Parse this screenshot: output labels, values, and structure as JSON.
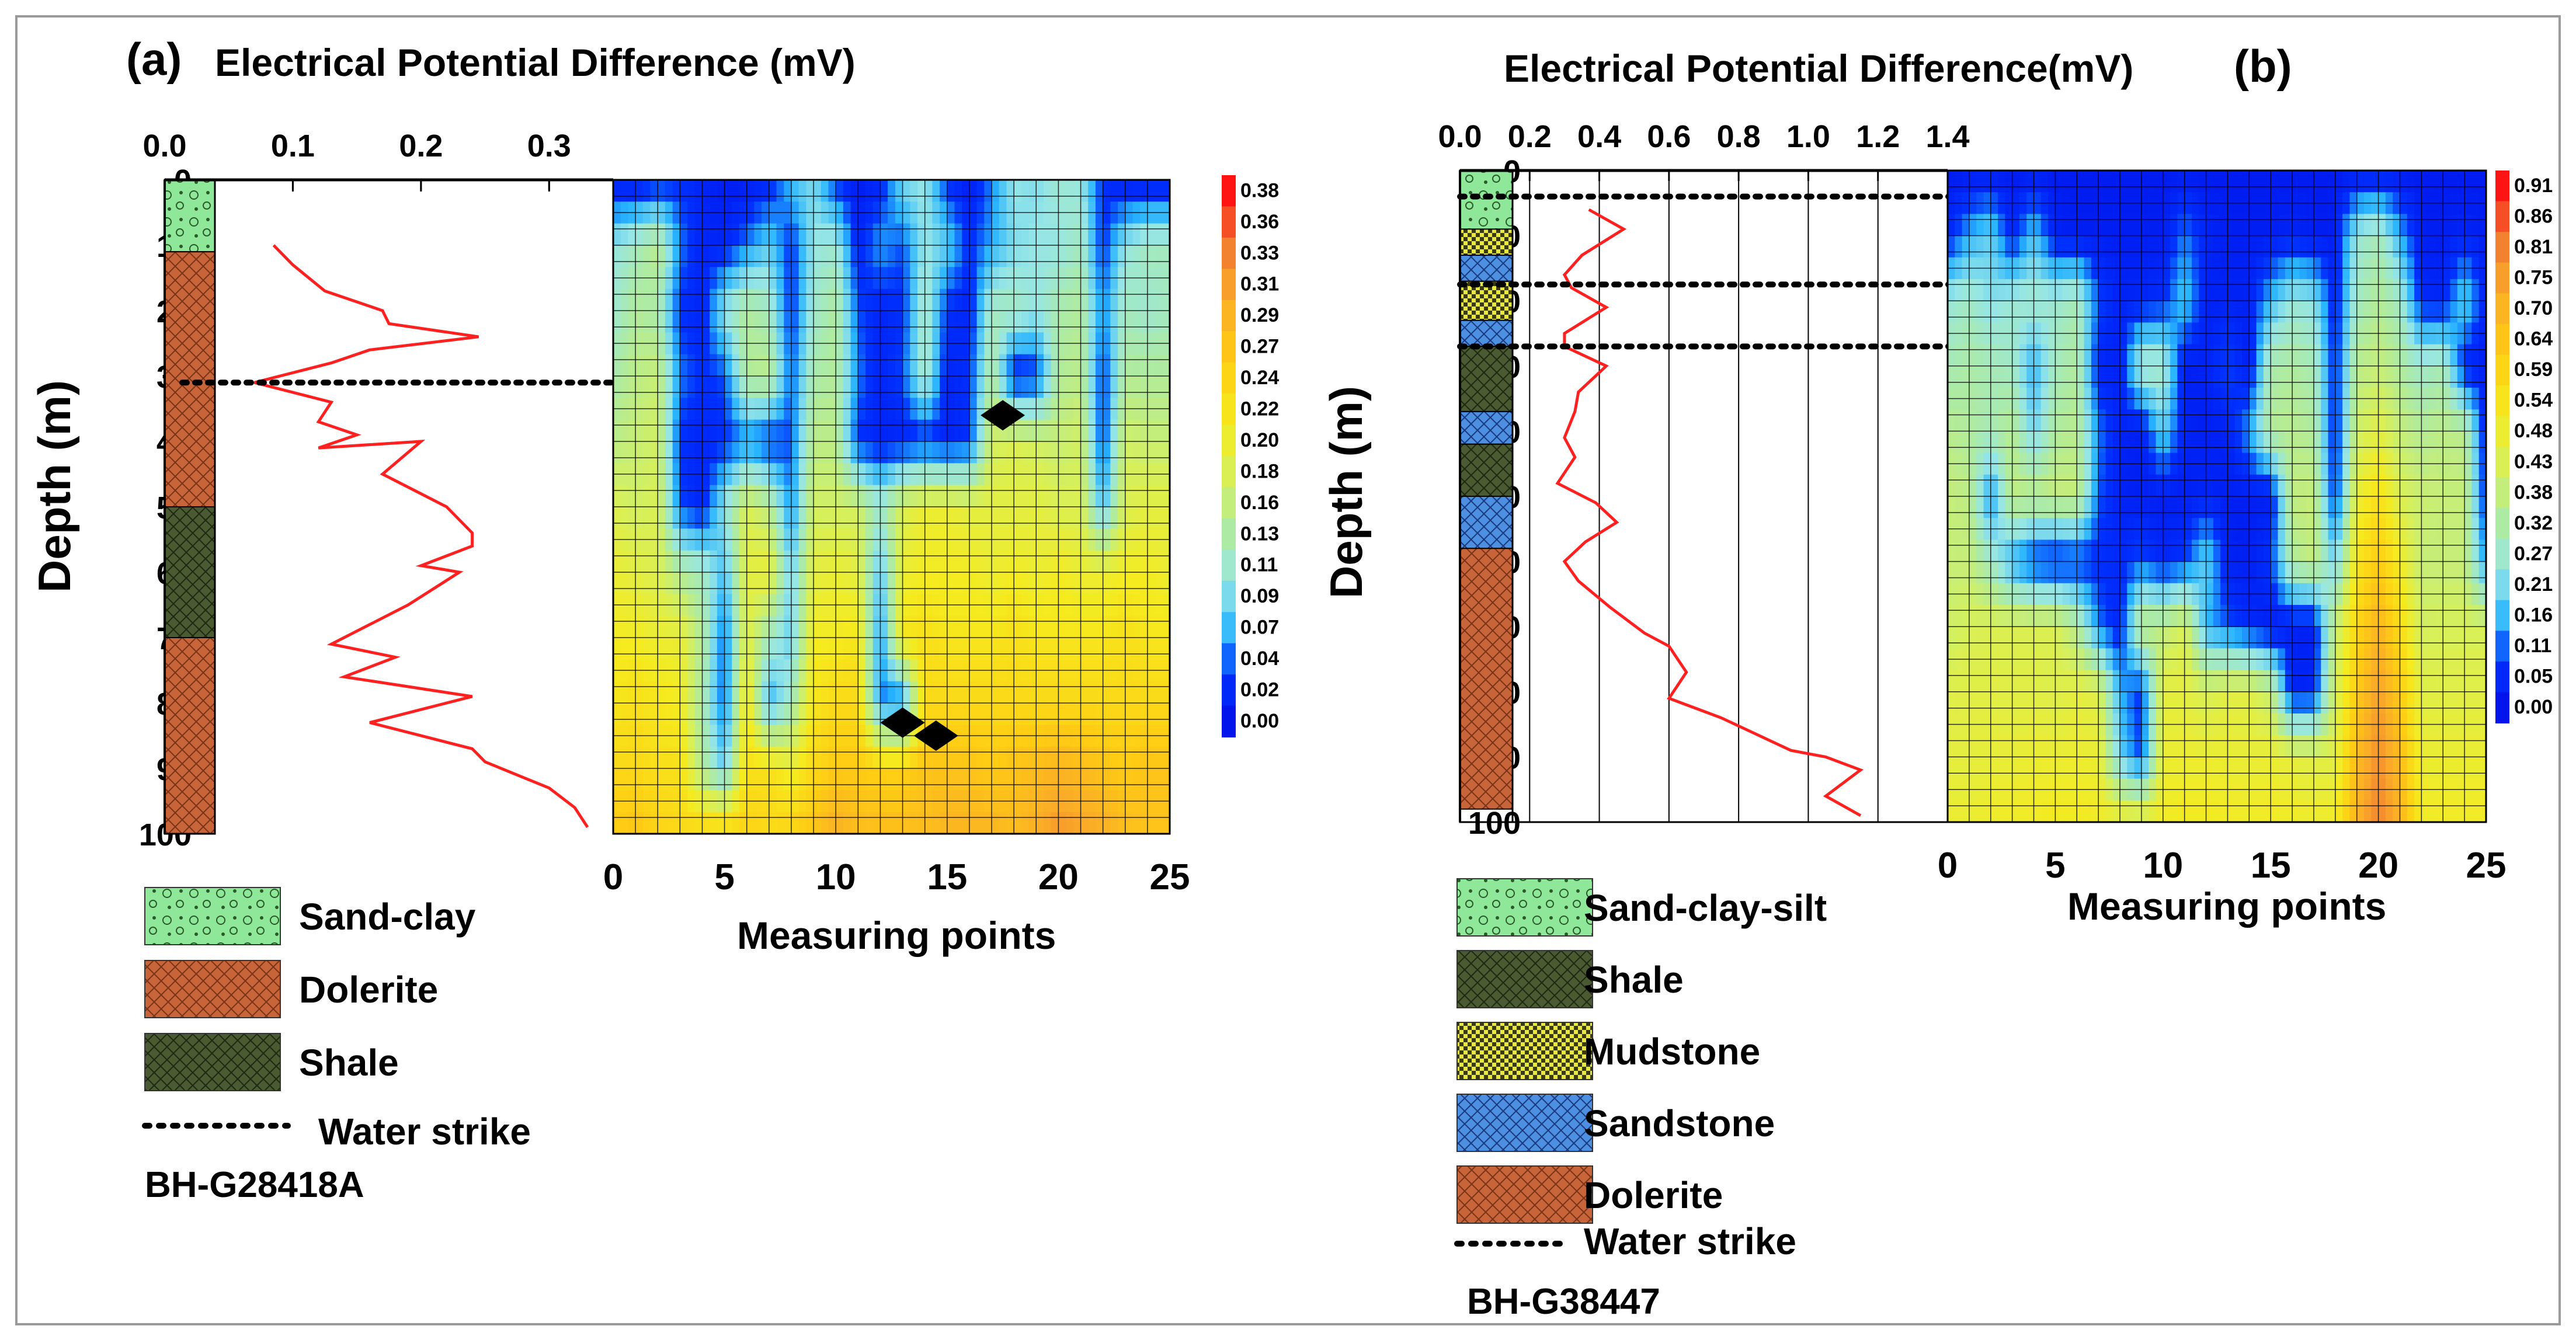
{
  "panels": [
    {
      "panel_label": "(a)",
      "title": "Electrical Potential Difference (mV)",
      "ylabel": "Depth (m)",
      "xlabel": "Measuring points",
      "borehole_id": "BH-G28418A",
      "water_strike_label": "Water strike",
      "legend": [
        {
          "label": "Sand-clay",
          "lith": "sandclay"
        },
        {
          "label": "Dolerite",
          "lith": "dolerite"
        },
        {
          "label": "Shale",
          "lith": "shale"
        }
      ],
      "colorbar_ticks": [
        "0.38",
        "0.36",
        "0.33",
        "0.31",
        "0.29",
        "0.27",
        "0.24",
        "0.22",
        "0.20",
        "0.18",
        "0.16",
        "0.13",
        "0.11",
        "0.09",
        "0.07",
        "0.04",
        "0.02",
        "0.00"
      ]
    },
    {
      "panel_label": "(b)",
      "title": "Electrical Potential Difference(mV)",
      "ylabel": "Depth (m)",
      "xlabel": "Measuring points",
      "borehole_id": "BH-G38447",
      "water_strike_label": "Water strike",
      "legend": [
        {
          "label": "Sand-clay-silt",
          "lith": "sandclay"
        },
        {
          "label": "Shale",
          "lith": "shale"
        },
        {
          "label": "Mudstone",
          "lith": "mudstone"
        },
        {
          "label": "Sandstone",
          "lith": "sandstone"
        },
        {
          "label": "Dolerite",
          "lith": "dolerite"
        }
      ],
      "colorbar_ticks": [
        "0.91",
        "0.86",
        "0.81",
        "0.75",
        "0.70",
        "0.64",
        "0.59",
        "0.54",
        "0.48",
        "0.43",
        "0.38",
        "0.32",
        "0.27",
        "0.21",
        "0.16",
        "0.11",
        "0.05",
        "0.00"
      ]
    }
  ],
  "colors": {
    "sandclay": "#8fe89a",
    "dolerite": "#c8643a",
    "shale": "#4a5a32",
    "mudstone": "#e8e840",
    "sandstone": "#4d8fe0",
    "curve": "#ff2020",
    "grid": "#000000"
  },
  "chart_data": [
    {
      "type": "line",
      "panel": "(a)",
      "title": "Electrical Potential Difference (mV)",
      "xlabel": "Electrical Potential Difference (mV)",
      "ylabel": "Depth (m)",
      "xlim": [
        0,
        0.35
      ],
      "ylim": [
        100,
        0
      ],
      "xticks": [
        "0.0",
        "0.1",
        "0.2",
        "0.3"
      ],
      "yticks": [
        "0",
        "10",
        "20",
        "30",
        "40",
        "50",
        "60",
        "70",
        "80",
        "90",
        "100"
      ],
      "series": [
        {
          "name": "Potential difference",
          "points": [
            [
              0.085,
              10
            ],
            [
              0.1,
              13
            ],
            [
              0.125,
              17
            ],
            [
              0.17,
              20
            ],
            [
              0.175,
              22
            ],
            [
              0.245,
              24
            ],
            [
              0.16,
              26
            ],
            [
              0.13,
              28
            ],
            [
              0.07,
              31
            ],
            [
              0.13,
              34
            ],
            [
              0.12,
              37
            ],
            [
              0.15,
              39
            ],
            [
              0.12,
              41
            ],
            [
              0.2,
              40
            ],
            [
              0.17,
              45
            ],
            [
              0.2,
              48
            ],
            [
              0.22,
              50
            ],
            [
              0.24,
              54
            ],
            [
              0.24,
              56
            ],
            [
              0.2,
              59
            ],
            [
              0.23,
              60
            ],
            [
              0.19,
              65
            ],
            [
              0.13,
              71
            ],
            [
              0.18,
              73
            ],
            [
              0.14,
              76
            ],
            [
              0.24,
              79
            ],
            [
              0.2,
              81
            ],
            [
              0.16,
              83
            ],
            [
              0.24,
              87
            ],
            [
              0.25,
              89
            ],
            [
              0.3,
              93
            ],
            [
              0.32,
              96
            ],
            [
              0.33,
              99
            ]
          ]
        }
      ],
      "lithology": [
        {
          "unit": "Sand-clay",
          "top": 0,
          "bottom": 11
        },
        {
          "unit": "Dolerite",
          "top": 11,
          "bottom": 50
        },
        {
          "unit": "Shale",
          "top": 50,
          "bottom": 70
        },
        {
          "unit": "Dolerite",
          "top": 70,
          "bottom": 100
        }
      ],
      "water_strikes": [
        31
      ]
    },
    {
      "type": "heatmap",
      "panel": "(a)",
      "xlabel": "Measuring points",
      "ylabel": "Depth (m)",
      "xlim": [
        0,
        25
      ],
      "ylim": [
        100,
        0
      ],
      "xticks": [
        "0",
        "5",
        "10",
        "15",
        "20",
        "25"
      ],
      "value_range_mV": [
        0.0,
        0.38
      ],
      "description_grid_rows": [
        [
          0.01,
          0.01,
          0.02,
          0.03,
          0.02,
          0.01,
          0.01,
          0.02,
          0.07,
          0.09,
          0.03,
          0.01,
          0.02,
          0.09,
          0.1,
          0.03,
          0.01,
          0.05,
          0.1,
          0.09,
          0.11,
          0.1,
          0.03,
          0.01,
          0.01,
          0.01
        ],
        [
          0.1,
          0.12,
          0.15,
          0.05,
          0.02,
          0.02,
          0.05,
          0.08,
          0.03,
          0.1,
          0.11,
          0.02,
          0.06,
          0.04,
          0.1,
          0.08,
          0.03,
          0.06,
          0.09,
          0.1,
          0.1,
          0.12,
          0.03,
          0.1,
          0.12,
          0.12
        ],
        [
          0.11,
          0.14,
          0.13,
          0.03,
          0.02,
          0.1,
          0.14,
          0.12,
          0.03,
          0.11,
          0.14,
          0.04,
          0.02,
          0.03,
          0.12,
          0.03,
          0.02,
          0.12,
          0.12,
          0.1,
          0.13,
          0.14,
          0.05,
          0.12,
          0.11,
          0.12
        ],
        [
          0.13,
          0.15,
          0.16,
          0.05,
          0.03,
          0.04,
          0.14,
          0.15,
          0.04,
          0.13,
          0.14,
          0.05,
          0.02,
          0.04,
          0.12,
          0.02,
          0.03,
          0.14,
          0.02,
          0.03,
          0.14,
          0.15,
          0.03,
          0.14,
          0.14,
          0.14
        ],
        [
          0.15,
          0.16,
          0.17,
          0.03,
          0.02,
          0.03,
          0.05,
          0.03,
          0.04,
          0.15,
          0.15,
          0.03,
          0.02,
          0.02,
          0.03,
          0.02,
          0.03,
          0.17,
          0.18,
          0.17,
          0.16,
          0.17,
          0.03,
          0.17,
          0.16,
          0.16
        ],
        [
          0.18,
          0.17,
          0.18,
          0.04,
          0.02,
          0.1,
          0.18,
          0.15,
          0.05,
          0.17,
          0.17,
          0.17,
          0.11,
          0.18,
          0.2,
          0.2,
          0.19,
          0.19,
          0.19,
          0.19,
          0.18,
          0.18,
          0.07,
          0.18,
          0.19,
          0.19
        ],
        [
          0.2,
          0.19,
          0.18,
          0.14,
          0.12,
          0.07,
          0.19,
          0.2,
          0.08,
          0.19,
          0.2,
          0.19,
          0.07,
          0.2,
          0.21,
          0.21,
          0.21,
          0.2,
          0.21,
          0.2,
          0.21,
          0.2,
          0.2,
          0.21,
          0.21,
          0.2
        ],
        [
          0.21,
          0.21,
          0.2,
          0.2,
          0.14,
          0.04,
          0.19,
          0.12,
          0.08,
          0.21,
          0.21,
          0.22,
          0.05,
          0.22,
          0.23,
          0.22,
          0.22,
          0.22,
          0.23,
          0.22,
          0.22,
          0.22,
          0.22,
          0.23,
          0.22,
          0.22
        ],
        [
          0.22,
          0.23,
          0.22,
          0.21,
          0.13,
          0.04,
          0.22,
          0.06,
          0.12,
          0.22,
          0.24,
          0.24,
          0.05,
          0.04,
          0.24,
          0.24,
          0.24,
          0.24,
          0.24,
          0.24,
          0.24,
          0.24,
          0.24,
          0.24,
          0.24,
          0.24
        ],
        [
          0.24,
          0.24,
          0.23,
          0.23,
          0.14,
          0.08,
          0.23,
          0.23,
          0.2,
          0.24,
          0.26,
          0.26,
          0.25,
          0.25,
          0.27,
          0.27,
          0.27,
          0.26,
          0.27,
          0.28,
          0.29,
          0.28,
          0.27,
          0.26,
          0.27,
          0.27
        ],
        [
          0.26,
          0.27,
          0.25,
          0.24,
          0.25,
          0.25,
          0.25,
          0.24,
          0.25,
          0.27,
          0.3,
          0.28,
          0.28,
          0.28,
          0.28,
          0.29,
          0.29,
          0.29,
          0.28,
          0.3,
          0.32,
          0.31,
          0.3,
          0.28,
          0.27,
          0.27
        ]
      ]
    },
    {
      "type": "line",
      "panel": "(b)",
      "title": "Electrical Potential Difference(mV)",
      "xlabel": "Electrical Potential Difference(mV)",
      "ylabel": "Depth (m)",
      "xlim": [
        0,
        1.4
      ],
      "ylim": [
        100,
        0
      ],
      "xticks": [
        "0.0",
        "0.2",
        "0.4",
        "0.6",
        "0.8",
        "1.0",
        "1.2",
        "1.4"
      ],
      "yticks": [
        "0",
        "10",
        "20",
        "30",
        "40",
        "50",
        "60",
        "70",
        "80",
        "90",
        "100"
      ],
      "series": [
        {
          "name": "Potential difference",
          "points": [
            [
              0.37,
              6
            ],
            [
              0.47,
              9
            ],
            [
              0.35,
              13
            ],
            [
              0.3,
              16
            ],
            [
              0.32,
              18
            ],
            [
              0.42,
              21
            ],
            [
              0.3,
              25
            ],
            [
              0.3,
              27
            ],
            [
              0.42,
              30
            ],
            [
              0.34,
              34
            ],
            [
              0.33,
              37
            ],
            [
              0.3,
              41
            ],
            [
              0.33,
              44
            ],
            [
              0.28,
              48
            ],
            [
              0.39,
              51
            ],
            [
              0.45,
              54
            ],
            [
              0.36,
              57
            ],
            [
              0.3,
              60
            ],
            [
              0.34,
              63
            ],
            [
              0.43,
              67
            ],
            [
              0.53,
              71
            ],
            [
              0.6,
              73
            ],
            [
              0.65,
              77
            ],
            [
              0.6,
              81
            ],
            [
              0.75,
              84
            ],
            [
              0.95,
              89
            ],
            [
              1.05,
              90
            ],
            [
              1.15,
              92
            ],
            [
              1.05,
              96
            ],
            [
              1.15,
              99
            ]
          ]
        }
      ],
      "lithology": [
        {
          "unit": "Sand-clay-silt",
          "top": 0,
          "bottom": 9
        },
        {
          "unit": "Mudstone",
          "top": 9,
          "bottom": 13
        },
        {
          "unit": "Sandstone",
          "top": 13,
          "bottom": 17
        },
        {
          "unit": "Mudstone",
          "top": 17,
          "bottom": 23
        },
        {
          "unit": "Sandstone",
          "top": 23,
          "bottom": 27
        },
        {
          "unit": "Shale",
          "top": 27,
          "bottom": 37
        },
        {
          "unit": "Sandstone",
          "top": 37,
          "bottom": 42
        },
        {
          "unit": "Shale",
          "top": 42,
          "bottom": 50
        },
        {
          "unit": "Sandstone",
          "top": 50,
          "bottom": 58
        },
        {
          "unit": "Dolerite",
          "top": 58,
          "bottom": 98
        }
      ],
      "water_strikes": [
        4,
        17.5,
        27
      ]
    },
    {
      "type": "heatmap",
      "panel": "(b)",
      "xlabel": "Measuring points",
      "ylabel": "Depth (m)",
      "xlim": [
        0,
        25
      ],
      "ylim": [
        100,
        0
      ],
      "xticks": [
        "0",
        "5",
        "10",
        "15",
        "20",
        "25"
      ],
      "value_range_mV": [
        0.0,
        0.91
      ],
      "description_grid_rows": [
        [
          0.02,
          0.02,
          0.02,
          0.02,
          0.02,
          0.02,
          0.02,
          0.02,
          0.02,
          0.02,
          0.02,
          0.02,
          0.02,
          0.02,
          0.02,
          0.02,
          0.02,
          0.02,
          0.02,
          0.02,
          0.02,
          0.02,
          0.02,
          0.02,
          0.02,
          0.02
        ],
        [
          0.05,
          0.15,
          0.2,
          0.05,
          0.18,
          0.04,
          0.03,
          0.03,
          0.03,
          0.03,
          0.03,
          0.12,
          0.05,
          0.03,
          0.03,
          0.03,
          0.05,
          0.03,
          0.03,
          0.25,
          0.3,
          0.15,
          0.03,
          0.03,
          0.05,
          0.03
        ],
        [
          0.25,
          0.28,
          0.22,
          0.26,
          0.27,
          0.26,
          0.3,
          0.1,
          0.04,
          0.05,
          0.07,
          0.18,
          0.04,
          0.04,
          0.04,
          0.16,
          0.25,
          0.23,
          0.05,
          0.28,
          0.34,
          0.28,
          0.06,
          0.05,
          0.2,
          0.04
        ],
        [
          0.3,
          0.32,
          0.3,
          0.28,
          0.15,
          0.29,
          0.33,
          0.05,
          0.04,
          0.28,
          0.28,
          0.03,
          0.04,
          0.1,
          0.03,
          0.31,
          0.33,
          0.3,
          0.06,
          0.35,
          0.38,
          0.33,
          0.27,
          0.3,
          0.05,
          0.03
        ],
        [
          0.35,
          0.33,
          0.3,
          0.35,
          0.2,
          0.33,
          0.35,
          0.12,
          0.04,
          0.03,
          0.2,
          0.04,
          0.03,
          0.04,
          0.14,
          0.34,
          0.35,
          0.33,
          0.05,
          0.4,
          0.45,
          0.38,
          0.34,
          0.36,
          0.35,
          0.04
        ],
        [
          0.38,
          0.36,
          0.12,
          0.37,
          0.36,
          0.38,
          0.38,
          0.1,
          0.04,
          0.03,
          0.03,
          0.03,
          0.05,
          0.03,
          0.03,
          0.03,
          0.37,
          0.38,
          0.06,
          0.47,
          0.55,
          0.43,
          0.39,
          0.38,
          0.38,
          0.05
        ],
        [
          0.38,
          0.38,
          0.28,
          0.15,
          0.07,
          0.05,
          0.07,
          0.07,
          0.06,
          0.1,
          0.05,
          0.08,
          0.2,
          0.04,
          0.03,
          0.08,
          0.33,
          0.38,
          0.2,
          0.53,
          0.62,
          0.5,
          0.38,
          0.38,
          0.38,
          0.12
        ],
        [
          0.4,
          0.42,
          0.43,
          0.43,
          0.43,
          0.43,
          0.34,
          0.12,
          0.05,
          0.37,
          0.36,
          0.43,
          0.15,
          0.1,
          0.06,
          0.03,
          0.04,
          0.03,
          0.38,
          0.58,
          0.7,
          0.56,
          0.41,
          0.42,
          0.42,
          0.42
        ],
        [
          0.44,
          0.45,
          0.45,
          0.45,
          0.45,
          0.44,
          0.46,
          0.44,
          0.15,
          0.07,
          0.46,
          0.46,
          0.42,
          0.45,
          0.45,
          0.38,
          0.04,
          0.05,
          0.42,
          0.62,
          0.75,
          0.62,
          0.45,
          0.45,
          0.45,
          0.45
        ],
        [
          0.46,
          0.46,
          0.47,
          0.47,
          0.48,
          0.48,
          0.48,
          0.48,
          0.2,
          0.08,
          0.48,
          0.48,
          0.48,
          0.48,
          0.47,
          0.48,
          0.46,
          0.45,
          0.45,
          0.67,
          0.78,
          0.67,
          0.48,
          0.48,
          0.48,
          0.48
        ],
        [
          0.48,
          0.48,
          0.49,
          0.5,
          0.5,
          0.51,
          0.51,
          0.5,
          0.5,
          0.49,
          0.5,
          0.51,
          0.51,
          0.5,
          0.5,
          0.5,
          0.5,
          0.49,
          0.5,
          0.7,
          0.8,
          0.7,
          0.5,
          0.5,
          0.5,
          0.5
        ]
      ]
    }
  ]
}
